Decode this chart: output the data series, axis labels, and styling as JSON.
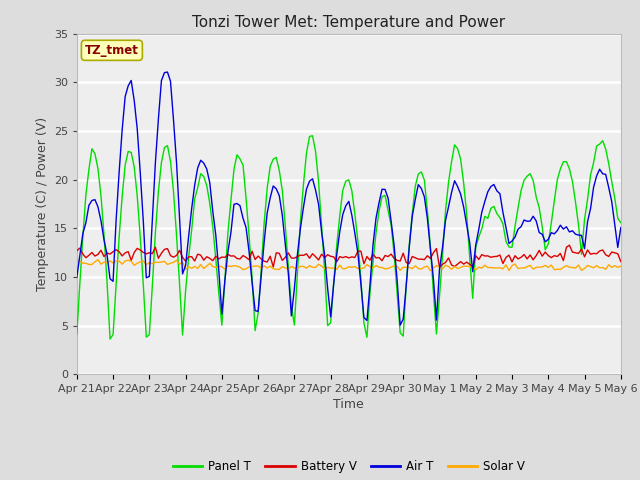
{
  "title": "Tonzi Tower Met: Temperature and Power",
  "xlabel": "Time",
  "ylabel": "Temperature (C) / Power (V)",
  "annotation": "TZ_tmet",
  "ylim": [
    0,
    35
  ],
  "xtick_labels": [
    "Apr 21",
    "Apr 22",
    "Apr 23",
    "Apr 24",
    "Apr 25",
    "Apr 26",
    "Apr 27",
    "Apr 28",
    "Apr 29",
    "Apr 30",
    "May 1",
    "May 2",
    "May 3",
    "May 4",
    "May 5",
    "May 6"
  ],
  "legend_items": [
    "Panel T",
    "Battery V",
    "Air T",
    "Solar V"
  ],
  "legend_colors": [
    "#00dd00",
    "#dd0000",
    "#0000dd",
    "#ffaa00"
  ],
  "panel_peaks": [
    23.0,
    23.0,
    23.5,
    20.5,
    22.5,
    22.5,
    24.5,
    20.0,
    18.5,
    21.0,
    23.5,
    17.0,
    20.5,
    22.0,
    24.0,
    16.0
  ],
  "panel_mins": [
    4.0,
    4.0,
    4.0,
    8.5,
    5.0,
    6.5,
    5.0,
    5.5,
    4.0,
    4.0,
    8.0,
    13.0,
    13.0,
    13.0,
    16.0,
    15.5
  ],
  "air_peaks": [
    18.0,
    30.0,
    31.5,
    22.0,
    17.5,
    19.5,
    20.0,
    17.5,
    19.0,
    19.5,
    19.5,
    19.5,
    16.0,
    15.0,
    21.0,
    16.0
  ],
  "air_mins": [
    10.0,
    10.0,
    10.0,
    11.0,
    6.5,
    6.5,
    9.0,
    6.0,
    5.5,
    5.5,
    11.0,
    13.5,
    13.5,
    14.0,
    13.0,
    15.5
  ],
  "batt_base": [
    12.5,
    12.5,
    12.5,
    12.0,
    12.0,
    12.0,
    12.0,
    12.0,
    12.0,
    12.0,
    11.5,
    12.0,
    12.0,
    12.5,
    12.5,
    12.0
  ],
  "solar_base": [
    11.5,
    11.5,
    11.5,
    11.0,
    11.0,
    11.0,
    11.0,
    11.0,
    11.0,
    11.0,
    11.0,
    11.0,
    11.0,
    11.0,
    11.0,
    11.0
  ],
  "title_fontsize": 11,
  "axis_fontsize": 9,
  "tick_fontsize": 8
}
